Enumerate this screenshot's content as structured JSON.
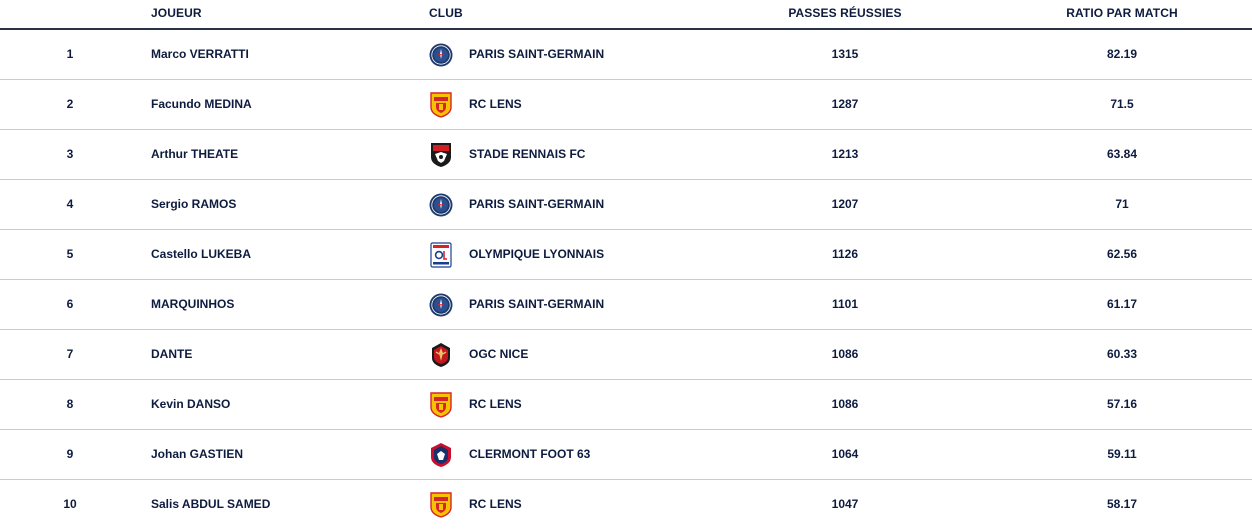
{
  "columns": {
    "rank": "",
    "player": "JOUEUR",
    "club": "CLUB",
    "passes": "PASSES RÉUSSIES",
    "ratio": "RATIO PAR MATCH"
  },
  "rows": [
    {
      "rank": "1",
      "player": "Marco VERRATTI",
      "club": "PARIS SAINT-GERMAIN",
      "logo": "psg-crest-icon",
      "passes": "1315",
      "ratio": "82.19"
    },
    {
      "rank": "2",
      "player": "Facundo MEDINA",
      "club": "RC LENS",
      "logo": "rc-lens-crest-icon",
      "passes": "1287",
      "ratio": "71.5"
    },
    {
      "rank": "3",
      "player": "Arthur THEATE",
      "club": "STADE RENNAIS FC",
      "logo": "stade-rennais-crest-icon",
      "passes": "1213",
      "ratio": "63.84"
    },
    {
      "rank": "4",
      "player": "Sergio RAMOS",
      "club": "PARIS SAINT-GERMAIN",
      "logo": "psg-crest-icon",
      "passes": "1207",
      "ratio": "71"
    },
    {
      "rank": "5",
      "player": "Castello LUKEBA",
      "club": "OLYMPIQUE LYONNAIS",
      "logo": "olympique-lyonnais-crest-icon",
      "passes": "1126",
      "ratio": "62.56"
    },
    {
      "rank": "6",
      "player": "MARQUINHOS",
      "club": "PARIS SAINT-GERMAIN",
      "logo": "psg-crest-icon",
      "passes": "1101",
      "ratio": "61.17"
    },
    {
      "rank": "7",
      "player": "DANTE",
      "club": "OGC NICE",
      "logo": "ogc-nice-crest-icon",
      "passes": "1086",
      "ratio": "60.33"
    },
    {
      "rank": "8",
      "player": "Kevin DANSO",
      "club": "RC LENS",
      "logo": "rc-lens-crest-icon",
      "passes": "1086",
      "ratio": "57.16"
    },
    {
      "rank": "9",
      "player": "Johan GASTIEN",
      "club": "CLERMONT FOOT 63",
      "logo": "clermont-foot-crest-icon",
      "passes": "1064",
      "ratio": "59.11"
    },
    {
      "rank": "10",
      "player": "Salis ABDUL SAMED",
      "club": "RC LENS",
      "logo": "rc-lens-crest-icon",
      "passes": "1047",
      "ratio": "58.17"
    }
  ],
  "colors": {
    "text": "#0d1b3e",
    "header_rule": "#2a3247",
    "row_divider": "#c9ccd3",
    "psg_blue": "#1d3a6e",
    "lens_red": "#d8232a",
    "lens_yellow": "#f5c400",
    "rennes_black": "#1a1a1a",
    "rennes_red": "#d41c24",
    "lyon_blue": "#1b3f8f",
    "lyon_red": "#d8232a",
    "nice_red": "#c4161c",
    "clermont_red": "#c8102e",
    "clermont_blue": "#1b2f6b"
  }
}
